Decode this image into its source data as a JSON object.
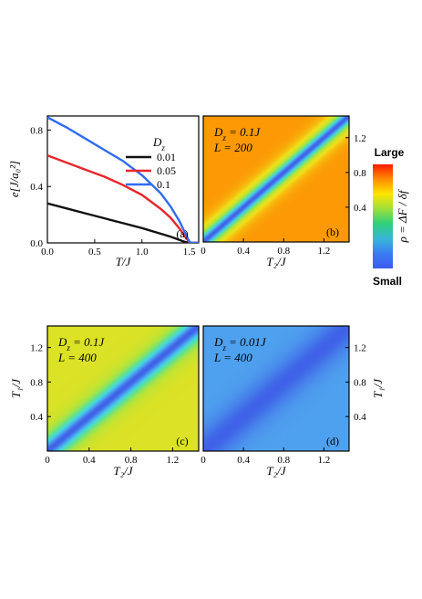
{
  "chart_data": [
    {
      "type": "line",
      "panel_label": "(a)",
      "xlabel": "T/J",
      "ylabel": "e[J/a₀²]",
      "xlim": [
        0,
        1.6
      ],
      "ylim": [
        0,
        0.9
      ],
      "xticks": [
        "0.0",
        "0.5",
        "1.0",
        "1.5"
      ],
      "yticks": [
        "0.0",
        "0.4",
        "0.8"
      ],
      "legend_title": "D_z",
      "legend_position": "top-right",
      "series": [
        {
          "name": "0.01",
          "color": "#111111",
          "x": [
            0,
            0.2,
            0.4,
            0.6,
            0.8,
            1.0,
            1.2,
            1.3,
            1.4,
            1.45,
            1.5,
            1.52,
            1.6
          ],
          "y": [
            0.28,
            0.245,
            0.21,
            0.175,
            0.14,
            0.105,
            0.065,
            0.045,
            0.02,
            0.008,
            0.0,
            0.0,
            0.0
          ]
        },
        {
          "name": "0.05",
          "color": "#e8262a",
          "x": [
            0,
            0.2,
            0.4,
            0.6,
            0.8,
            1.0,
            1.2,
            1.3,
            1.4,
            1.45,
            1.5,
            1.52,
            1.6
          ],
          "y": [
            0.62,
            0.57,
            0.52,
            0.47,
            0.41,
            0.34,
            0.24,
            0.18,
            0.1,
            0.05,
            0.005,
            0.0,
            0.0
          ]
        },
        {
          "name": "0.1",
          "color": "#2f6cf0",
          "x": [
            0,
            0.2,
            0.4,
            0.6,
            0.8,
            1.0,
            1.2,
            1.3,
            1.4,
            1.45,
            1.5,
            1.52,
            1.6
          ],
          "y": [
            0.89,
            0.82,
            0.74,
            0.66,
            0.58,
            0.48,
            0.35,
            0.26,
            0.15,
            0.08,
            0.01,
            0.0,
            0.0
          ]
        }
      ]
    },
    {
      "type": "heatmap",
      "panel_label": "(b)",
      "annotation": [
        "D_z = 0.1J",
        "L = 200"
      ],
      "xlabel": "T₂/J",
      "ylabel": "T₁/J",
      "ylabel_side": "right",
      "xticks": [
        "0",
        "0.4",
        "0.8",
        "1.2"
      ],
      "yticks": [
        "0.4",
        "0.8",
        "1.2"
      ],
      "range": [
        0,
        1.45
      ],
      "valley_width": 0.22,
      "contrast": 5.0,
      "max_level": 1.0
    },
    {
      "type": "heatmap",
      "panel_label": "(c)",
      "annotation": [
        "D_z = 0.1J",
        "L = 400"
      ],
      "xlabel": "T₂/J",
      "ylabel": "T₁/J",
      "ylabel_side": "left",
      "xticks": [
        "0",
        "0.4",
        "0.8",
        "1.2"
      ],
      "yticks": [
        "0.4",
        "0.8",
        "1.2"
      ],
      "range": [
        0,
        1.45
      ],
      "valley_width": 0.25,
      "contrast": 2.6,
      "max_level": 0.92
    },
    {
      "type": "heatmap",
      "panel_label": "(d)",
      "annotation": [
        "D_z = 0.01J",
        "L = 400"
      ],
      "xlabel": "T₂/J",
      "ylabel": "T₁/J",
      "ylabel_side": "right",
      "xticks": [
        "0",
        "0.4",
        "0.8",
        "1.2"
      ],
      "yticks": [
        "0.4",
        "0.8",
        "1.2"
      ],
      "range": [
        0,
        1.45
      ],
      "valley_width": 0.3,
      "contrast": 0.55,
      "max_level": 0.42
    }
  ],
  "colorbar": {
    "top_label": "Large",
    "bottom_label": "Small",
    "quantity": "ρ = ΔF / δf",
    "colors": [
      "#ff1a00",
      "#ff8c00",
      "#ffe600",
      "#9be03c",
      "#2fd07a",
      "#39b6d8",
      "#3a7cf0",
      "#3d5bf0"
    ]
  },
  "heat_colors": [
    "#3f62e8",
    "#4e9fee",
    "#43d6e4",
    "#64e38a",
    "#b6e43a",
    "#f0e11a",
    "#ff8a00",
    "#ff1f00"
  ]
}
